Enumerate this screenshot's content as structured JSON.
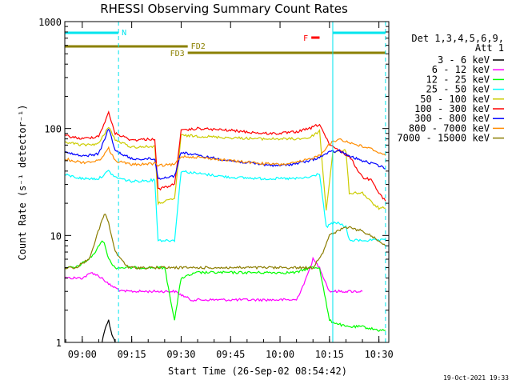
{
  "chart_data": {
    "type": "line",
    "title": "RHESSI Observing Summary Count Rates",
    "xlabel": "Start Time (26-Sep-02 08:54:42)",
    "ylabel": "Count Rate (s⁻¹ detector⁻¹)",
    "y_scale": "log",
    "ylim": [
      1,
      1000
    ],
    "xlim": [
      "08:54:42",
      "10:33:00"
    ],
    "x_ticks": [
      "09:00",
      "09:15",
      "09:30",
      "09:45",
      "10:00",
      "10:15",
      "10:30"
    ],
    "y_ticks": [
      "1",
      "10",
      "100",
      "1000"
    ],
    "grid": false,
    "legend_position": "right",
    "legend_header": [
      "Det 1,3,4,5,6,9,",
      "Att 1"
    ],
    "footer_date": "19-Oct-2021 19:33",
    "flags": [
      {
        "label": "N",
        "color": "#00e5ee",
        "segments": [
          [
            "08:54:42",
            "09:11:00"
          ],
          [
            "10:16:00",
            "10:32:00"
          ]
        ]
      },
      {
        "label": "FD2",
        "color": "#8b8000",
        "segments": [
          [
            "08:54:42",
            "09:32:00"
          ]
        ]
      },
      {
        "label": "FD3",
        "color": "#8b8000",
        "segments": [
          [
            "09:32:00",
            "10:32:00"
          ]
        ]
      },
      {
        "label": "F",
        "color": "#ff0000",
        "segments": [
          [
            "10:09:30",
            "10:12:00"
          ]
        ]
      }
    ],
    "series": [
      {
        "name": "3 - 6 keV",
        "color": "#000000",
        "x": [
          "09:06",
          "09:07",
          "09:08",
          "09:09",
          "09:10"
        ],
        "values": [
          1,
          1.4,
          1.6,
          1.2,
          1
        ]
      },
      {
        "name": "6 - 12 keV",
        "color": "#ff00ff",
        "x": [
          "08:54:42",
          "09:00",
          "09:03",
          "09:06",
          "09:08",
          "09:12",
          "09:20",
          "09:28",
          "09:33",
          "09:40",
          "09:50",
          "10:00",
          "10:05",
          "10:08",
          "10:10",
          "10:12",
          "10:15",
          "10:20",
          "10:25"
        ],
        "values": [
          4,
          4,
          4.5,
          4,
          3.5,
          3,
          3,
          3,
          2.5,
          2.5,
          2.5,
          2.5,
          2.5,
          4,
          6,
          5,
          3,
          3,
          3
        ]
      },
      {
        "name": "12 - 25 keV",
        "color": "#00ff00",
        "x": [
          "08:54:42",
          "08:58",
          "09:02",
          "09:04",
          "09:06",
          "09:07",
          "09:08",
          "09:10",
          "09:14",
          "09:20",
          "09:25",
          "09:28",
          "09:30",
          "09:35",
          "09:45",
          "09:55",
          "10:00",
          "10:05",
          "10:09",
          "10:12",
          "10:15",
          "10:20",
          "10:25",
          "10:30",
          "10:32"
        ],
        "values": [
          5,
          5,
          6,
          7,
          9,
          8,
          6,
          5,
          5,
          5,
          5,
          1.6,
          4,
          4.5,
          4.5,
          4.5,
          4.5,
          4.5,
          5,
          5,
          1.6,
          1.4,
          1.4,
          1.3,
          1.3
        ]
      },
      {
        "name": "25 - 50 keV",
        "color": "#00ffff",
        "x": [
          "08:54:42",
          "09:00",
          "09:05",
          "09:08",
          "09:10",
          "09:15",
          "09:22",
          "09:23",
          "09:28",
          "09:30",
          "09:35",
          "09:45",
          "09:55",
          "10:00",
          "10:05",
          "10:09",
          "10:12",
          "10:14",
          "10:16",
          "10:18",
          "10:20",
          "10:21",
          "10:25",
          "10:27",
          "10:29",
          "10:31",
          "10:32"
        ],
        "values": [
          37,
          34,
          34,
          40,
          35,
          32,
          33,
          9,
          9,
          40,
          38,
          35,
          34,
          34,
          34,
          35,
          38,
          12,
          13,
          13,
          12,
          9,
          9,
          9,
          9,
          9,
          9
        ]
      },
      {
        "name": "50 - 100 keV",
        "color": "#cccc00",
        "x": [
          "08:54:42",
          "09:00",
          "09:05",
          "09:08",
          "09:10",
          "09:15",
          "09:22",
          "09:23",
          "09:28",
          "09:30",
          "09:35",
          "09:45",
          "09:55",
          "10:00",
          "10:05",
          "10:09",
          "10:12",
          "10:14",
          "10:16",
          "10:20",
          "10:21",
          "10:25",
          "10:28",
          "10:30",
          "10:32"
        ],
        "values": [
          75,
          70,
          72,
          105,
          78,
          67,
          68,
          20,
          22,
          86,
          85,
          82,
          80,
          80,
          80,
          82,
          95,
          17,
          60,
          62,
          25,
          25,
          20,
          18,
          18
        ]
      },
      {
        "name": "100 - 300 keV",
        "color": "#ff0000",
        "x": [
          "08:54:42",
          "09:00",
          "09:05",
          "09:08",
          "09:10",
          "09:15",
          "09:22",
          "09:23",
          "09:28",
          "09:30",
          "09:35",
          "09:45",
          "09:55",
          "10:00",
          "10:05",
          "10:09",
          "10:12",
          "10:15",
          "10:18",
          "10:21",
          "10:25",
          "10:28",
          "10:30",
          "10:32"
        ],
        "values": [
          86,
          80,
          85,
          140,
          90,
          78,
          80,
          27,
          30,
          95,
          100,
          96,
          90,
          90,
          93,
          100,
          110,
          70,
          62,
          55,
          35,
          33,
          25,
          21
        ]
      },
      {
        "name": "300 - 800 keV",
        "color": "#0000ff",
        "x": [
          "08:54:42",
          "09:00",
          "09:05",
          "09:08",
          "09:10",
          "09:15",
          "09:22",
          "09:23",
          "09:28",
          "09:30",
          "09:35",
          "09:45",
          "09:55",
          "10:00",
          "10:05",
          "10:09",
          "10:12",
          "10:15",
          "10:18",
          "10:21",
          "10:25",
          "10:28",
          "10:30",
          "10:32"
        ],
        "values": [
          60,
          55,
          58,
          100,
          62,
          52,
          52,
          34,
          36,
          60,
          56,
          50,
          46,
          45,
          47,
          50,
          54,
          60,
          62,
          55,
          50,
          47,
          45,
          42
        ]
      },
      {
        "name": "800 - 7000 keV",
        "color": "#ff8c00",
        "x": [
          "08:54:42",
          "09:00",
          "09:05",
          "09:08",
          "09:10",
          "09:15",
          "09:22",
          "09:23",
          "09:28",
          "09:30",
          "09:35",
          "09:45",
          "09:55",
          "10:00",
          "10:05",
          "10:09",
          "10:12",
          "10:15",
          "10:18",
          "10:21",
          "10:25",
          "10:28",
          "10:30",
          "10:32"
        ],
        "values": [
          52,
          48,
          50,
          65,
          50,
          46,
          47,
          45,
          46,
          55,
          54,
          50,
          47,
          46,
          48,
          52,
          56,
          72,
          80,
          74,
          68,
          64,
          60,
          56
        ]
      },
      {
        "name": "7000 - 15000 keV",
        "color": "#8b7d00",
        "x": [
          "08:54:42",
          "08:58",
          "09:02",
          "09:04",
          "09:06",
          "09:07",
          "09:08",
          "09:10",
          "09:14",
          "09:20",
          "09:30",
          "09:40",
          "09:50",
          "10:00",
          "10:05",
          "10:10",
          "10:13",
          "10:15",
          "10:20",
          "10:25",
          "10:30",
          "10:32"
        ],
        "values": [
          5,
          5,
          6,
          9,
          14,
          16,
          13,
          7,
          5,
          5,
          5,
          5,
          5,
          5,
          5,
          5,
          7,
          10,
          12,
          11,
          9,
          8
        ]
      }
    ]
  }
}
